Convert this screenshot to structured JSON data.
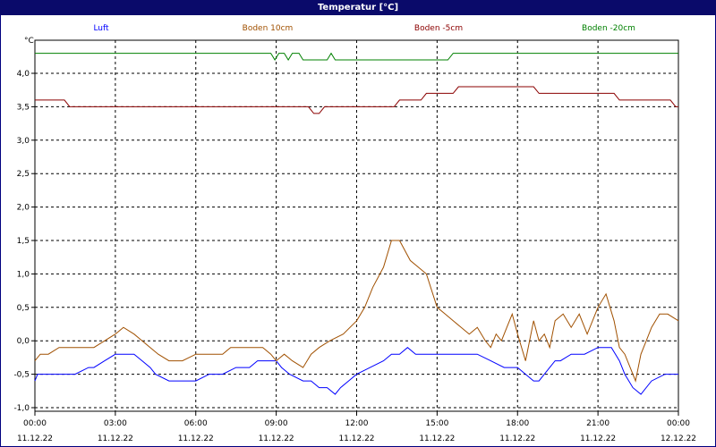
{
  "chart_data": {
    "type": "line",
    "title": "Temperatur [°C]",
    "ylabel": "°C",
    "xlabel": "",
    "ylim": [
      -1.0,
      4.5
    ],
    "yticks": [
      4.0,
      3.5,
      3.0,
      2.5,
      2.0,
      1.5,
      1.0,
      0.5,
      0.0,
      -0.5,
      -1.0
    ],
    "ytick_labels": [
      "4,0",
      "3,5",
      "3,0",
      "2,5",
      "2,0",
      "1,5",
      "1,0",
      "0,5",
      "0,0",
      "-0,5",
      "-1,0"
    ],
    "xlim_hours": [
      0,
      24
    ],
    "xticks_hours": [
      0,
      3,
      6,
      9,
      12,
      15,
      18,
      21,
      24
    ],
    "xtick_labels": [
      [
        "00:00",
        "11.12.22"
      ],
      [
        "03:00",
        "11.12.22"
      ],
      [
        "06:00",
        "11.12.22"
      ],
      [
        "09:00",
        "11.12.22"
      ],
      [
        "12:00",
        "11.12.22"
      ],
      [
        "15:00",
        "11.12.22"
      ],
      [
        "18:00",
        "11.12.22"
      ],
      [
        "21:00",
        "11.12.22"
      ],
      [
        "00:00",
        "12.12.22"
      ]
    ],
    "grid": true,
    "legend_position": "top",
    "series": [
      {
        "name": "Luft",
        "color": "#0000ff",
        "x": [
          0,
          0.1,
          0.5,
          1,
          1.5,
          2,
          2.2,
          2.6,
          3,
          3.3,
          3.7,
          4,
          4.3,
          4.5,
          5,
          5.5,
          6,
          6.5,
          7,
          7.5,
          8,
          8.3,
          8.5,
          8.8,
          9,
          9.2,
          9.5,
          10,
          10.3,
          10.6,
          10.9,
          11.2,
          11.4,
          11.7,
          12,
          12.5,
          13,
          13.3,
          13.6,
          13.9,
          14.2,
          14.5,
          14.8,
          15,
          15.5,
          16,
          16.5,
          17,
          17.5,
          18,
          18.3,
          18.6,
          18.8,
          19,
          19.2,
          19.4,
          19.6,
          20,
          20.5,
          21,
          21.5,
          21.8,
          22,
          22.3,
          22.6,
          23,
          23.5,
          24
        ],
        "y": [
          -0.6,
          -0.5,
          -0.5,
          -0.5,
          -0.5,
          -0.4,
          -0.4,
          -0.3,
          -0.2,
          -0.2,
          -0.2,
          -0.3,
          -0.4,
          -0.5,
          -0.6,
          -0.6,
          -0.6,
          -0.5,
          -0.5,
          -0.4,
          -0.4,
          -0.3,
          -0.3,
          -0.3,
          -0.3,
          -0.4,
          -0.5,
          -0.6,
          -0.6,
          -0.7,
          -0.7,
          -0.8,
          -0.7,
          -0.6,
          -0.5,
          -0.4,
          -0.3,
          -0.2,
          -0.2,
          -0.1,
          -0.2,
          -0.2,
          -0.2,
          -0.2,
          -0.2,
          -0.2,
          -0.2,
          -0.3,
          -0.4,
          -0.4,
          -0.5,
          -0.6,
          -0.6,
          -0.5,
          -0.4,
          -0.3,
          -0.3,
          -0.2,
          -0.2,
          -0.1,
          -0.1,
          -0.3,
          -0.5,
          -0.7,
          -0.8,
          -0.6,
          -0.5,
          -0.5
        ]
      },
      {
        "name": "Boden 10cm",
        "color": "#a05000",
        "x": [
          0,
          0.2,
          0.5,
          0.9,
          1.3,
          1.8,
          2.2,
          2.6,
          3,
          3.3,
          3.7,
          4,
          4.3,
          4.6,
          5,
          5.5,
          6,
          6.5,
          7,
          7.3,
          7.6,
          8,
          8.5,
          8.8,
          9,
          9.3,
          9.6,
          10,
          10.3,
          10.6,
          11,
          11.5,
          12,
          12.3,
          12.6,
          13,
          13.3,
          13.6,
          14,
          14.3,
          14.6,
          15,
          15.3,
          15.6,
          15.9,
          16.2,
          16.5,
          16.8,
          17,
          17.2,
          17.4,
          17.6,
          17.8,
          18,
          18.3,
          18.6,
          18.8,
          19,
          19.2,
          19.4,
          19.7,
          20,
          20.3,
          20.6,
          21,
          21.3,
          21.6,
          21.8,
          22,
          22.2,
          22.4,
          22.6,
          22.8,
          23,
          23.3,
          23.6,
          24
        ],
        "y": [
          -0.3,
          -0.2,
          -0.2,
          -0.1,
          -0.1,
          -0.1,
          -0.1,
          0.0,
          0.1,
          0.2,
          0.1,
          0.0,
          -0.1,
          -0.2,
          -0.3,
          -0.3,
          -0.2,
          -0.2,
          -0.2,
          -0.1,
          -0.1,
          -0.1,
          -0.1,
          -0.2,
          -0.3,
          -0.2,
          -0.3,
          -0.4,
          -0.2,
          -0.1,
          0.0,
          0.1,
          0.3,
          0.5,
          0.8,
          1.1,
          1.5,
          1.5,
          1.2,
          1.1,
          1.0,
          0.5,
          0.4,
          0.3,
          0.2,
          0.1,
          0.2,
          0.0,
          -0.1,
          0.1,
          0.0,
          0.2,
          0.4,
          0.1,
          -0.3,
          0.3,
          0.0,
          0.1,
          -0.1,
          0.3,
          0.4,
          0.2,
          0.4,
          0.1,
          0.5,
          0.7,
          0.3,
          -0.1,
          -0.2,
          -0.4,
          -0.6,
          -0.2,
          0.0,
          0.2,
          0.4,
          0.4,
          0.3
        ]
      },
      {
        "name": "Boden -5cm",
        "color": "#8b0000",
        "x": [
          0,
          1.1,
          1.3,
          10.2,
          10.4,
          10.6,
          10.8,
          13.4,
          13.6,
          14.4,
          14.6,
          15.6,
          15.8,
          18.6,
          18.8,
          21.6,
          21.8,
          23.7,
          23.9,
          24
        ],
        "y": [
          3.6,
          3.6,
          3.5,
          3.5,
          3.4,
          3.4,
          3.5,
          3.5,
          3.6,
          3.6,
          3.7,
          3.7,
          3.8,
          3.8,
          3.7,
          3.7,
          3.6,
          3.6,
          3.5,
          3.5
        ],
        "labels_x": "hours since 00:00"
      },
      {
        "name": "Boden -20cm",
        "color": "#008000",
        "x": [
          0,
          8.8,
          8.95,
          9.1,
          9.3,
          9.45,
          9.6,
          9.85,
          10,
          10.9,
          11.05,
          11.2,
          15.4,
          15.6,
          24
        ],
        "y": [
          4.3,
          4.3,
          4.2,
          4.3,
          4.3,
          4.2,
          4.3,
          4.3,
          4.2,
          4.2,
          4.3,
          4.2,
          4.2,
          4.3,
          4.3
        ]
      }
    ]
  }
}
